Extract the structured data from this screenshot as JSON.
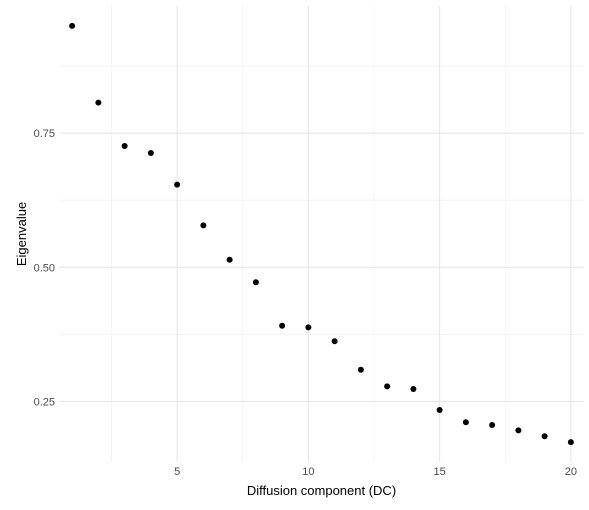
{
  "chart_data": {
    "type": "scatter",
    "title": "",
    "xlabel": "Diffusion component (DC)",
    "ylabel": "Eigenvalue",
    "x": [
      1,
      2,
      3,
      4,
      5,
      6,
      7,
      8,
      9,
      10,
      11,
      12,
      13,
      14,
      15,
      16,
      17,
      18,
      19,
      20
    ],
    "y": [
      0.95,
      0.807,
      0.726,
      0.713,
      0.654,
      0.578,
      0.514,
      0.472,
      0.391,
      0.388,
      0.362,
      0.309,
      0.278,
      0.273,
      0.234,
      0.211,
      0.206,
      0.196,
      0.185,
      0.174
    ],
    "xlim": [
      0.5,
      20.5
    ],
    "ylim": [
      0.137,
      0.987
    ],
    "xticks": [
      5,
      10,
      15,
      20
    ],
    "xtick_labels": [
      "5",
      "10",
      "15",
      "20"
    ],
    "yticks": [
      0.25,
      0.5,
      0.75
    ],
    "ytick_labels": [
      "0.25",
      "0.50",
      "0.75"
    ],
    "grid": true,
    "legend": "none",
    "point_color": "#000000",
    "grid_color": "#e5e5e5"
  }
}
